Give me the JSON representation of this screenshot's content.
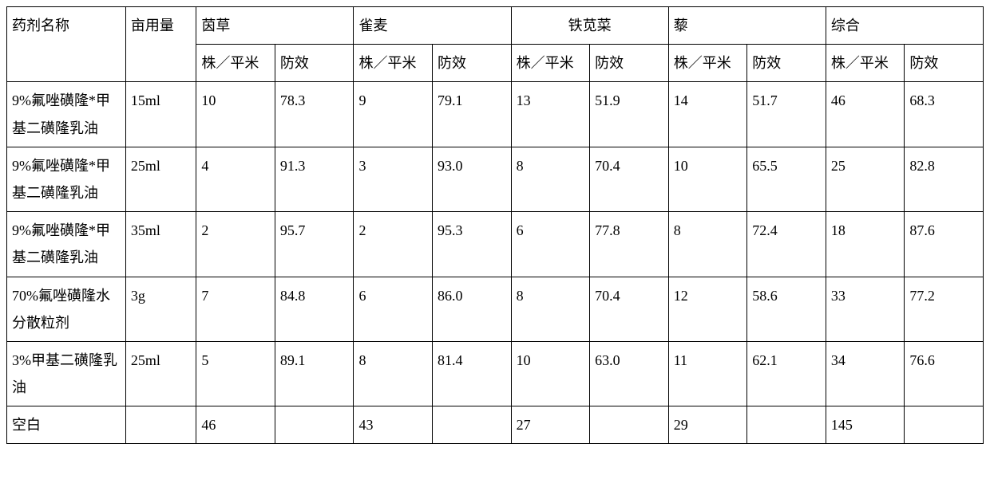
{
  "table": {
    "background_color": "#ffffff",
    "border_color": "#000000",
    "font_family": "SimSun",
    "font_size_pt": 14,
    "text_color": "#000000",
    "header": {
      "name": "药剂名称",
      "dose": "亩用量",
      "groups": [
        "茵草",
        "雀麦",
        "铁苋菜",
        "藜",
        "综合"
      ],
      "sub_density": "株／平米",
      "sub_effect": "防效"
    },
    "rows": [
      {
        "name": "9%氟唑磺隆*甲基二磺隆乳油",
        "dose": "15ml",
        "c": [
          {
            "d": "10",
            "e": "78.3"
          },
          {
            "d": "9",
            "e": "79.1"
          },
          {
            "d": "13",
            "e": "51.9"
          },
          {
            "d": "14",
            "e": "51.7"
          },
          {
            "d": "46",
            "e": "68.3"
          }
        ]
      },
      {
        "name": "9%氟唑磺隆*甲基二磺隆乳油",
        "dose": "25ml",
        "c": [
          {
            "d": "4",
            "e": "91.3"
          },
          {
            "d": "3",
            "e": "93.0"
          },
          {
            "d": "8",
            "e": "70.4"
          },
          {
            "d": "10",
            "e": "65.5"
          },
          {
            "d": "25",
            "e": "82.8"
          }
        ]
      },
      {
        "name": "9%氟唑磺隆*甲基二磺隆乳油",
        "dose": "35ml",
        "c": [
          {
            "d": "2",
            "e": "95.7"
          },
          {
            "d": "2",
            "e": "95.3"
          },
          {
            "d": "6",
            "e": "77.8"
          },
          {
            "d": "8",
            "e": "72.4"
          },
          {
            "d": "18",
            "e": "87.6"
          }
        ]
      },
      {
        "name": "70%氟唑磺隆水分散粒剂",
        "dose": "3g",
        "c": [
          {
            "d": "7",
            "e": "84.8"
          },
          {
            "d": "6",
            "e": "86.0"
          },
          {
            "d": "8",
            "e": "70.4"
          },
          {
            "d": "12",
            "e": "58.6"
          },
          {
            "d": "33",
            "e": "77.2"
          }
        ]
      },
      {
        "name": "3%甲基二磺隆乳油",
        "dose": "25ml",
        "c": [
          {
            "d": "5",
            "e": "89.1"
          },
          {
            "d": "8",
            "e": "81.4"
          },
          {
            "d": "10",
            "e": "63.0"
          },
          {
            "d": "11",
            "e": "62.1"
          },
          {
            "d": "34",
            "e": "76.6"
          }
        ]
      },
      {
        "name": "空白",
        "dose": "",
        "c": [
          {
            "d": "46",
            "e": ""
          },
          {
            "d": "43",
            "e": ""
          },
          {
            "d": "27",
            "e": ""
          },
          {
            "d": "29",
            "e": ""
          },
          {
            "d": "145",
            "e": ""
          }
        ]
      }
    ]
  }
}
